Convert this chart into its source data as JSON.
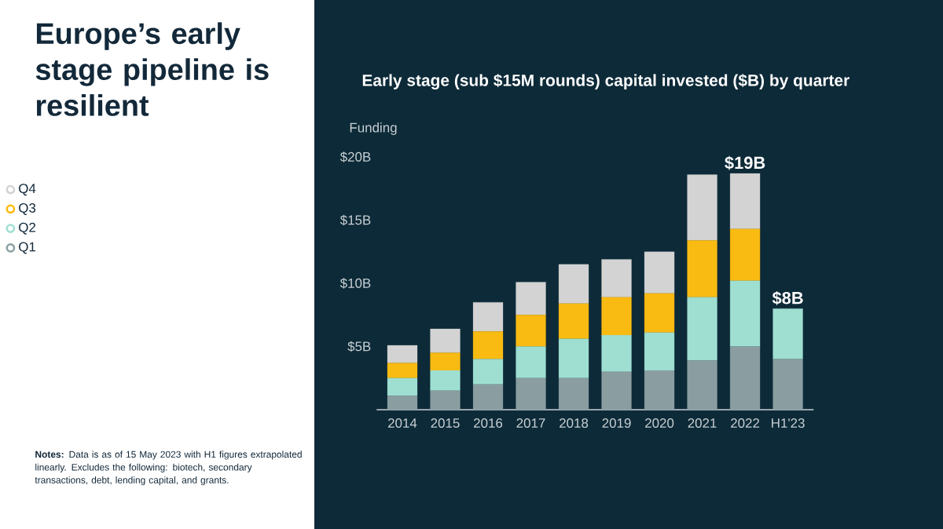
{
  "chart_data": {
    "type": "bar",
    "stacked": true,
    "title": "Europe’s early stage pipeline is resilient",
    "subtitle": "Early stage (sub $15M rounds) capital invested ($B) by quarter",
    "ylabel": "Funding",
    "categories": [
      "2014",
      "2015",
      "2016",
      "2017",
      "2018",
      "2019",
      "2020",
      "2021",
      "2022",
      "H1'23"
    ],
    "series": [
      {
        "name": "Q1",
        "color": "#8a9ea2",
        "values": [
          1.1,
          1.5,
          2.0,
          2.5,
          2.5,
          3.0,
          3.1,
          3.9,
          5.0,
          4.0
        ]
      },
      {
        "name": "Q2",
        "color": "#9edfd2",
        "values": [
          1.4,
          1.6,
          2.0,
          2.5,
          3.1,
          2.9,
          3.0,
          5.0,
          5.2,
          4.0
        ]
      },
      {
        "name": "Q3",
        "color": "#f9bb12",
        "values": [
          1.2,
          1.4,
          2.2,
          2.5,
          2.8,
          3.0,
          3.1,
          4.5,
          4.1,
          null
        ]
      },
      {
        "name": "Q4",
        "color": "#d3d3d3",
        "values": [
          1.4,
          1.9,
          2.3,
          2.6,
          3.1,
          3.0,
          3.3,
          5.2,
          4.4,
          null
        ]
      }
    ],
    "totals": [
      null,
      null,
      null,
      null,
      null,
      null,
      null,
      null,
      "$19B",
      "$8B"
    ],
    "ylim": [
      0,
      20
    ],
    "yticks": [
      {
        "value": 5,
        "label": "$5B"
      },
      {
        "value": 10,
        "label": "$10B"
      },
      {
        "value": 15,
        "label": "$15B"
      },
      {
        "value": 20,
        "label": "$20B"
      }
    ],
    "legend": "left",
    "marker": "circle",
    "grid": false,
    "annotations": [
      "**Notes:** Data is as of 15 May 2023 with H1 figures extrapolated linearly. Excludes the following: biotech, secondary transactions, debt, lending capital, and grants."
    ]
  }
}
